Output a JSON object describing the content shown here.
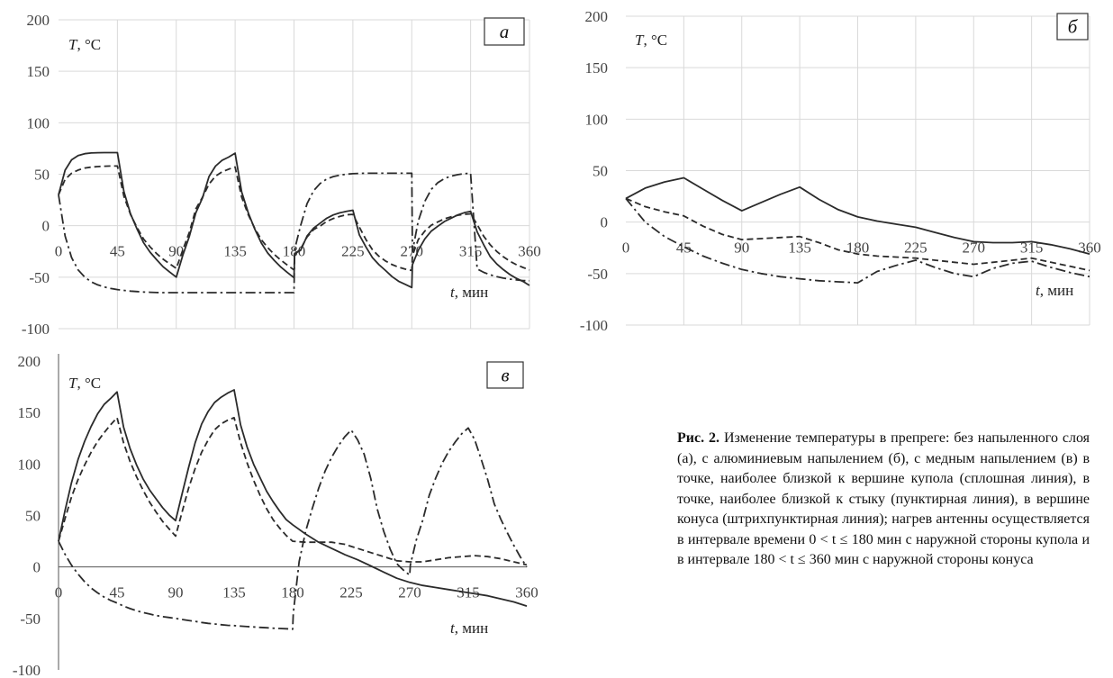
{
  "axis_labels": {
    "y_label": "T, °C",
    "x_label": "t, мин"
  },
  "caption": {
    "label": "Рис. 2.",
    "text": "Изменение температуры в препреге: без напыленного слоя (а), с алюминиевым напылением (б), с медным напылением (в) в точке, наиболее близкой к вершине купола (сплошная линия), в точке, наиболее близкой к стыку (пунктирная линия), в вершине конуса (штрихпунктирная линия); нагрев антенны осуществляется в интервале времени 0 < t ≤ 180 мин с наружной стороны купола и в интервале 180 < t ≤ 360 мин с наружной стороны конуса"
  },
  "chart_data": [
    {
      "type": "line",
      "panel_label": "а",
      "x_ticks": [
        0,
        45,
        90,
        135,
        180,
        225,
        270,
        315,
        360
      ],
      "y_ticks": [
        200,
        150,
        100,
        50,
        0,
        -50,
        -100
      ],
      "xlim": [
        0,
        360
      ],
      "ylim": [
        -100,
        200
      ],
      "grid": true,
      "series": [
        {
          "style": "solid",
          "x": [
            0,
            5,
            10,
            15,
            20,
            25,
            30,
            35,
            40,
            45,
            50,
            55,
            60,
            65,
            70,
            75,
            80,
            85,
            90,
            95,
            100,
            105,
            110,
            115,
            120,
            125,
            130,
            135,
            140,
            145,
            150,
            155,
            160,
            165,
            170,
            175,
            180,
            180.5,
            185,
            190,
            195,
            200,
            205,
            210,
            215,
            220,
            225,
            230,
            235,
            240,
            245,
            250,
            255,
            260,
            265,
            270,
            270.5,
            275,
            280,
            285,
            290,
            295,
            300,
            305,
            310,
            315,
            320,
            325,
            330,
            335,
            340,
            345,
            350,
            355,
            360
          ],
          "y": [
            30,
            53.9,
            64,
            68.2,
            69.9,
            70.6,
            70.9,
            71,
            71,
            71,
            33.1,
            11.6,
            -3.3,
            -16.5,
            -25.7,
            -33.1,
            -39.9,
            -45.1,
            -50,
            -28.7,
            -10.3,
            12.6,
            26.8,
            47.7,
            57.9,
            63.5,
            66.6,
            70.5,
            32.7,
            12.6,
            -3.3,
            -16.8,
            -26.6,
            -33.9,
            -40.3,
            -45.5,
            -50.5,
            -27,
            -24,
            -10,
            -2.3,
            2.5,
            7.2,
            10.5,
            12.5,
            13.9,
            15,
            -9,
            -20.7,
            -31.2,
            -37.9,
            -43.6,
            -49.5,
            -54,
            -57,
            -60,
            -38,
            -23.8,
            -12.8,
            -5.2,
            -0.5,
            4.1,
            7.2,
            10.4,
            12.6,
            14,
            -6,
            -18.6,
            -30,
            -37.2,
            -42.6,
            -47.4,
            -51.2,
            -54.1,
            -58
          ]
        },
        {
          "style": "dashed",
          "x": [
            0,
            5,
            10,
            15,
            20,
            25,
            30,
            35,
            40,
            45,
            50,
            55,
            60,
            65,
            70,
            75,
            80,
            85,
            90,
            95,
            100,
            105,
            110,
            115,
            120,
            125,
            130,
            135,
            140,
            145,
            150,
            155,
            160,
            165,
            170,
            175,
            180,
            180.5,
            185,
            190,
            195,
            200,
            205,
            210,
            215,
            220,
            225,
            230,
            235,
            240,
            245,
            250,
            255,
            260,
            265,
            270,
            270.5,
            275,
            280,
            285,
            290,
            295,
            300,
            305,
            310,
            315,
            320,
            325,
            330,
            335,
            340,
            345,
            350,
            355,
            360
          ],
          "y": [
            30,
            45,
            51,
            54,
            56,
            56.9,
            57.4,
            57.8,
            58,
            58,
            28.6,
            11,
            -1.8,
            -12.9,
            -20.6,
            -27.1,
            -32.6,
            -37.1,
            -41.5,
            -23.6,
            -6.3,
            16.3,
            27.5,
            40.4,
            48.1,
            52.3,
            54.9,
            57,
            27.7,
            10.6,
            -2.5,
            -13.6,
            -21.4,
            -28,
            -33.5,
            -38.3,
            -43,
            -28,
            -22.7,
            -11,
            -3.7,
            -0.3,
            4.2,
            7,
            9,
            10.6,
            11,
            -1.4,
            -13.5,
            -23.5,
            -29.8,
            -34.3,
            -37.8,
            -40.3,
            -42.2,
            -43.5,
            -29,
            -13.5,
            -5.2,
            0.5,
            3.7,
            6.7,
            8.6,
            10.1,
            11,
            11.5,
            1.1,
            -10.3,
            -18.6,
            -25,
            -30.1,
            -34.5,
            -37.9,
            -40.5,
            -43
          ]
        },
        {
          "style": "dash-dot",
          "x": [
            0,
            5,
            10,
            15,
            20,
            25,
            30,
            35,
            40,
            45,
            50,
            55,
            60,
            65,
            70,
            75,
            80,
            85,
            90,
            95,
            100,
            105,
            110,
            115,
            120,
            125,
            130,
            135,
            140,
            145,
            150,
            155,
            160,
            165,
            170,
            175,
            180,
            180.5,
            185,
            190,
            195,
            200,
            205,
            210,
            215,
            220,
            225,
            230,
            235,
            240,
            245,
            250,
            255,
            260,
            265,
            270,
            270.5,
            275,
            280,
            285,
            290,
            295,
            300,
            305,
            310,
            315,
            320,
            325,
            330,
            335,
            340,
            345,
            350,
            355,
            360
          ],
          "y": [
            30,
            -10,
            -31,
            -43,
            -50,
            -54.5,
            -57.5,
            -59.5,
            -61,
            -62,
            -62.8,
            -63.5,
            -64,
            -64.4,
            -64.7,
            -64.9,
            -65,
            -65,
            -65,
            -65,
            -65,
            -65,
            -65,
            -65,
            -65,
            -65,
            -65,
            -65,
            -65,
            -65,
            -65,
            -65,
            -65,
            -65,
            -65,
            -65,
            -65,
            -23,
            0,
            21.5,
            34,
            41.1,
            45.3,
            47.7,
            49.1,
            50,
            50.5,
            50.8,
            51,
            51,
            51,
            51,
            51,
            51,
            51,
            51,
            -25,
            4.6,
            23.7,
            35.3,
            41.9,
            45.8,
            48.2,
            49.6,
            50.5,
            51,
            -42,
            -45.3,
            -47.7,
            -49.5,
            -50.9,
            -51.9,
            -52.7,
            -53.3,
            -53.5
          ]
        }
      ]
    },
    {
      "type": "line",
      "panel_label": "б",
      "x_ticks": [
        0,
        45,
        90,
        135,
        180,
        225,
        270,
        315,
        360
      ],
      "y_ticks": [
        200,
        150,
        100,
        50,
        0,
        -50,
        -100
      ],
      "xlim": [
        0,
        360
      ],
      "ylim": [
        -100,
        200
      ],
      "grid": true,
      "series": [
        {
          "style": "solid",
          "x": [
            0,
            15,
            30,
            45,
            60,
            75,
            90,
            105,
            120,
            135,
            150,
            165,
            180,
            195,
            210,
            225,
            240,
            255,
            270,
            285,
            300,
            315,
            330,
            345,
            360
          ],
          "y": [
            23,
            33,
            39,
            43,
            32,
            21,
            11,
            19,
            27,
            34,
            22,
            12,
            5,
            1,
            -2,
            -5,
            -10,
            -15,
            -19,
            -20,
            -20,
            -19,
            -22,
            -26,
            -31
          ]
        },
        {
          "style": "dashed",
          "x": [
            0,
            15,
            30,
            45,
            60,
            75,
            90,
            105,
            120,
            135,
            150,
            165,
            180,
            195,
            210,
            225,
            240,
            255,
            270,
            285,
            300,
            315,
            330,
            345,
            360
          ],
          "y": [
            23,
            15,
            10,
            6,
            -4,
            -12,
            -17,
            -16,
            -15,
            -14,
            -20,
            -27,
            -31,
            -33,
            -34,
            -35,
            -37,
            -39,
            -41,
            -39,
            -37,
            -35,
            -39,
            -43,
            -47
          ]
        },
        {
          "style": "dash-dot",
          "x": [
            0,
            15,
            30,
            45,
            60,
            75,
            90,
            105,
            120,
            135,
            150,
            165,
            180,
            195,
            210,
            225,
            240,
            255,
            270,
            285,
            300,
            315,
            330,
            345,
            360
          ],
          "y": [
            23,
            0,
            -14,
            -24,
            -33,
            -40,
            -46,
            -50,
            -53,
            -55,
            -57,
            -58,
            -59,
            -48,
            -42,
            -37,
            -44,
            -50,
            -53,
            -45,
            -40,
            -38,
            -44,
            -49,
            -53
          ]
        }
      ]
    },
    {
      "type": "line",
      "panel_label": "в",
      "x_ticks": [
        0,
        45,
        90,
        135,
        180,
        225,
        270,
        315,
        360
      ],
      "y_ticks": [
        200,
        150,
        100,
        50,
        0,
        -50,
        -100
      ],
      "xlim": [
        0,
        360
      ],
      "ylim": [
        -100,
        200
      ],
      "grid": false,
      "series": [
        {
          "style": "solid",
          "x": [
            0,
            5,
            10,
            15,
            20,
            25,
            30,
            35,
            40,
            45,
            50,
            55,
            60,
            65,
            70,
            75,
            80,
            85,
            90,
            95,
            100,
            105,
            110,
            115,
            120,
            125,
            130,
            135,
            140,
            145,
            150,
            155,
            160,
            165,
            170,
            175,
            180,
            190,
            200,
            210,
            220,
            230,
            240,
            250,
            260,
            270,
            280,
            290,
            300,
            310,
            320,
            330,
            340,
            350,
            360
          ],
          "y": [
            25,
            54.7,
            81.8,
            104.5,
            121.9,
            136.3,
            148.6,
            157.8,
            163.6,
            170,
            136,
            115.2,
            99,
            85.5,
            74.8,
            66.2,
            57.6,
            50.5,
            45,
            71,
            96.4,
            120.6,
            138.8,
            150.9,
            159.8,
            164.9,
            168.9,
            172,
            137.9,
            116.6,
            99.7,
            86.5,
            73.5,
            63.4,
            54.2,
            46,
            41,
            32,
            24,
            18,
            12,
            7,
            1,
            -5,
            -11,
            -15,
            -18,
            -20,
            -22,
            -24,
            -26,
            -28,
            -31,
            -34,
            -38
          ]
        },
        {
          "style": "dashed",
          "x": [
            0,
            5,
            10,
            15,
            20,
            25,
            30,
            35,
            40,
            45,
            50,
            55,
            60,
            65,
            70,
            75,
            80,
            85,
            90,
            95,
            100,
            105,
            110,
            115,
            120,
            125,
            130,
            135,
            140,
            145,
            150,
            155,
            160,
            165,
            170,
            175,
            180,
            190,
            200,
            210,
            220,
            230,
            240,
            250,
            260,
            270,
            280,
            290,
            300,
            310,
            320,
            330,
            340,
            350,
            360
          ],
          "y": [
            25,
            46.9,
            67.9,
            85,
            98.9,
            111.2,
            121.8,
            130.4,
            138.1,
            145,
            120.8,
            102.5,
            87.5,
            74.6,
            63,
            53.4,
            44.2,
            37,
            30,
            53.3,
            76.4,
            95.6,
            111.4,
            123.2,
            133.3,
            139,
            142.5,
            145,
            120.7,
            101.2,
            84,
            69.4,
            56.6,
            45.9,
            37.7,
            30.6,
            25,
            24,
            24,
            24,
            22,
            18,
            14,
            10,
            6,
            5,
            5,
            7,
            9,
            10,
            11,
            10,
            8,
            5,
            2
          ]
        },
        {
          "style": "dash-dot",
          "x": [
            0,
            5,
            10,
            15,
            20,
            25,
            30,
            35,
            40,
            45,
            50,
            55,
            60,
            65,
            70,
            75,
            80,
            85,
            90,
            95,
            100,
            105,
            110,
            115,
            120,
            125,
            130,
            135,
            140,
            145,
            150,
            155,
            160,
            165,
            170,
            175,
            180,
            180.5,
            185,
            190,
            195,
            200,
            205,
            210,
            215,
            220,
            225,
            230,
            235,
            240,
            245,
            250,
            255,
            260,
            265,
            270,
            270.5,
            275,
            280,
            285,
            290,
            295,
            300,
            305,
            310,
            315,
            320,
            325,
            330,
            335,
            340,
            345,
            350,
            355,
            360
          ],
          "y": [
            25,
            12.3,
            1.7,
            -6.9,
            -14.3,
            -20.4,
            -25.1,
            -29.2,
            -32.5,
            -35,
            -38,
            -40.4,
            -42.5,
            -44.3,
            -45.7,
            -47.2,
            -48.2,
            -49.1,
            -50,
            -51,
            -52,
            -52.9,
            -53.9,
            -54.8,
            -55.4,
            -56.1,
            -56.7,
            -57,
            -57.5,
            -57.9,
            -58.3,
            -58.7,
            -59.1,
            -59.5,
            -59.8,
            -60,
            -60.5,
            -45,
            5.1,
            34.5,
            56.6,
            76.5,
            93.3,
            106.5,
            117.4,
            126.4,
            133,
            123.4,
            109.5,
            86.1,
            56.4,
            34.7,
            17.3,
            3.2,
            -2.9,
            -8,
            2,
            25.9,
            45.3,
            69.7,
            86.5,
            100.8,
            112.3,
            121.5,
            129.4,
            135,
            123.5,
            104.6,
            84.5,
            61.3,
            46.5,
            33.4,
            21,
            9.8,
            0
          ]
        }
      ]
    }
  ]
}
